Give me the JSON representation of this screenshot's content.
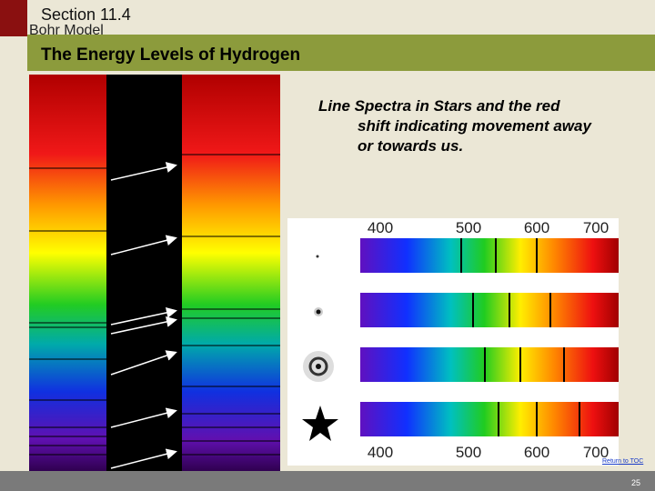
{
  "header": {
    "section": "Section 11.4",
    "subsection": "Bohr Model",
    "title": "The Energy Levels of Hydrogen"
  },
  "description": "Line Spectra in Stars and the red shift indicating movement away or towards us.",
  "spectrum_figure": {
    "top_scale": [
      "400",
      "500",
      "600",
      "700"
    ],
    "bottom_scale": [
      "400",
      "500",
      "600",
      "700"
    ]
  },
  "footer": {
    "link": "Return to TOC",
    "page_number": "25"
  }
}
